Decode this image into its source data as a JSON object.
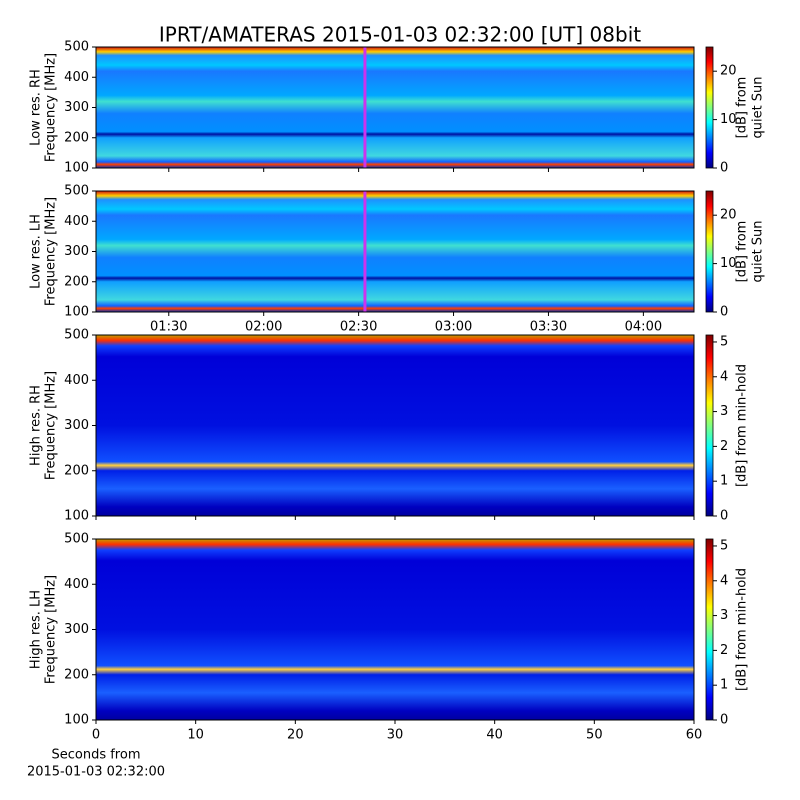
{
  "title": "IPRT/AMATERAS 2015-01-03 02:32:00 [UT]   08bit",
  "chart_data": [
    {
      "type": "spectrogram",
      "ylabel": [
        "Low res. RH",
        "Frequency [MHz]"
      ],
      "ylim": [
        100,
        500
      ],
      "yticks": [
        100,
        200,
        300,
        400,
        500
      ],
      "xlim": [
        "01:07",
        "04:16"
      ],
      "xticks": [
        "01:30",
        "02:00",
        "02:30",
        "03:00",
        "03:30",
        "04:00"
      ],
      "show_xticklabels": false,
      "marker": "02:32",
      "marker_color": "#cc33ee",
      "colorbar_label": [
        "[dB] from",
        "quiet Sun"
      ],
      "clim": [
        0,
        25
      ],
      "cticks": [
        0,
        10,
        20
      ],
      "colormap": [
        "#00007f",
        "#0000ff",
        "#0080ff",
        "#00ffff",
        "#80ff80",
        "#ffff00",
        "#ff8000",
        "#ff0000",
        "#7f0000"
      ]
    },
    {
      "type": "spectrogram",
      "ylabel": [
        "Low res. LH",
        "Frequency [MHz]"
      ],
      "ylim": [
        100,
        500
      ],
      "yticks": [
        100,
        200,
        300,
        400,
        500
      ],
      "xlim": [
        "01:07",
        "04:16"
      ],
      "xticks": [
        "01:30",
        "02:00",
        "02:30",
        "03:00",
        "03:30",
        "04:00"
      ],
      "show_xticklabels": true,
      "marker": "02:32",
      "marker_color": "#cc33ee",
      "colorbar_label": [
        "[dB] from",
        "quiet Sun"
      ],
      "clim": [
        0,
        25
      ],
      "cticks": [
        0,
        10,
        20
      ],
      "colormap": [
        "#00007f",
        "#0000ff",
        "#0080ff",
        "#00ffff",
        "#80ff80",
        "#ffff00",
        "#ff8000",
        "#ff0000",
        "#7f0000"
      ]
    },
    {
      "type": "spectrogram",
      "ylabel": [
        "High res. RH",
        "Frequency [MHz]"
      ],
      "ylim": [
        100,
        500
      ],
      "yticks": [
        100,
        200,
        300,
        400,
        500
      ],
      "xlim": [
        0,
        60
      ],
      "xticks": [
        0,
        10,
        20,
        30,
        40,
        50,
        60
      ],
      "show_xticklabels": false,
      "colorbar_label": [
        "[dB] from min-hold"
      ],
      "clim": [
        0,
        5.2
      ],
      "cticks": [
        0,
        1,
        2,
        3,
        4,
        5
      ],
      "colormap": [
        "#00007f",
        "#0000ff",
        "#0080ff",
        "#00ffff",
        "#80ff80",
        "#ffff00",
        "#ff8000",
        "#ff0000",
        "#7f0000"
      ]
    },
    {
      "type": "spectrogram",
      "ylabel": [
        "High res. LH",
        "Frequency [MHz]"
      ],
      "ylim": [
        100,
        500
      ],
      "yticks": [
        100,
        200,
        300,
        400,
        500
      ],
      "xlim": [
        0,
        60
      ],
      "xticks": [
        0,
        10,
        20,
        30,
        40,
        50,
        60
      ],
      "show_xticklabels": true,
      "xlabel": [
        "Seconds from",
        "2015-01-03 02:32:00"
      ],
      "colorbar_label": [
        "[dB] from min-hold"
      ],
      "clim": [
        0,
        5.2
      ],
      "cticks": [
        0,
        1,
        2,
        3,
        4,
        5
      ],
      "colormap": [
        "#00007f",
        "#0000ff",
        "#0080ff",
        "#00ffff",
        "#80ff80",
        "#ffff00",
        "#ff8000",
        "#ff0000",
        "#7f0000"
      ]
    }
  ]
}
